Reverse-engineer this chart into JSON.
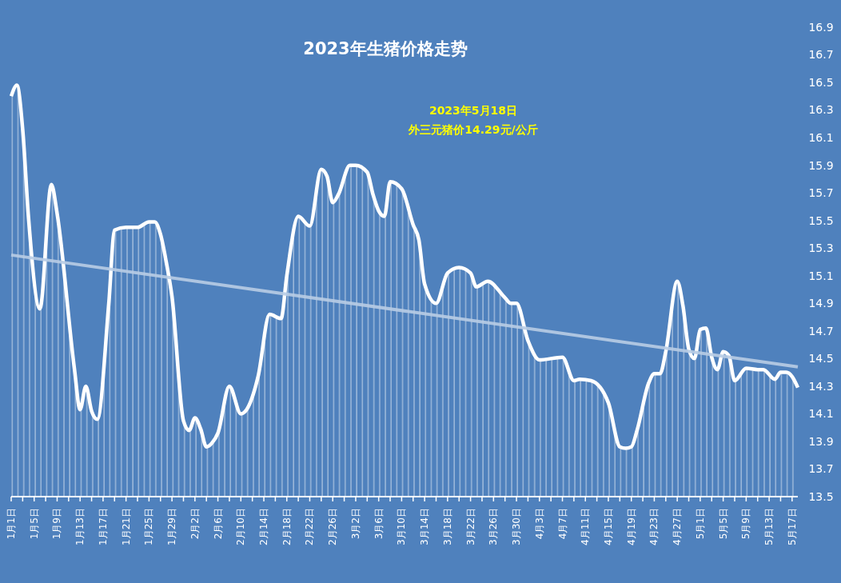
{
  "chart_data": {
    "type": "area",
    "title": "2023年生猪价格走势",
    "annotations": [
      "2023年5月18日",
      "外三元猪价14.29元/公斤"
    ],
    "x": [
      "2023-01-01",
      "2023-01-02",
      "2023-01-03",
      "2023-01-04",
      "2023-01-06",
      "2023-01-08",
      "2023-01-09",
      "2023-01-12",
      "2023-01-13",
      "2023-01-14",
      "2023-01-15",
      "2023-01-16",
      "2023-01-18",
      "2023-01-19",
      "2023-01-21",
      "2023-01-23",
      "2023-01-25",
      "2023-01-26",
      "2023-01-27",
      "2023-01-28",
      "2023-01-29",
      "2023-01-31",
      "2023-02-01",
      "2023-02-02",
      "2023-02-03",
      "2023-02-04",
      "2023-02-05",
      "2023-02-06",
      "2023-02-08",
      "2023-02-10",
      "2023-02-11",
      "2023-02-13",
      "2023-02-15",
      "2023-02-17",
      "2023-02-18",
      "2023-02-20",
      "2023-02-22",
      "2023-02-24",
      "2023-02-25",
      "2023-02-26",
      "2023-02-27",
      "2023-03-01",
      "2023-03-02",
      "2023-03-04",
      "2023-03-05",
      "2023-03-06",
      "2023-03-07",
      "2023-03-08",
      "2023-03-10",
      "2023-03-12",
      "2023-03-13",
      "2023-03-14",
      "2023-03-16",
      "2023-03-18",
      "2023-03-20",
      "2023-03-22",
      "2023-03-23",
      "2023-03-25",
      "2023-03-28",
      "2023-03-29",
      "2023-03-30",
      "2023-04-01",
      "2023-04-03",
      "2023-04-07",
      "2023-04-09",
      "2023-04-10",
      "2023-04-12",
      "2023-04-15",
      "2023-04-17",
      "2023-04-18",
      "2023-04-19",
      "2023-04-20",
      "2023-04-22",
      "2023-04-23",
      "2023-04-24",
      "2023-04-25",
      "2023-04-27",
      "2023-04-28",
      "2023-04-29",
      "2023-04-30",
      "2023-05-01",
      "2023-05-02",
      "2023-05-03",
      "2023-05-04",
      "2023-05-05",
      "2023-05-06",
      "2023-05-07",
      "2023-05-09",
      "2023-05-11",
      "2023-05-12",
      "2023-05-14",
      "2023-05-15",
      "2023-05-16",
      "2023-05-17",
      "2023-05-18"
    ],
    "series": [
      {
        "color": "#ffffff",
        "values": [
          16.4,
          16.48,
          16.16,
          15.53,
          14.86,
          15.76,
          15.55,
          14.43,
          14.13,
          14.3,
          14.12,
          14.06,
          14.9,
          15.43,
          15.45,
          15.45,
          15.49,
          15.49,
          15.4,
          15.2,
          14.95,
          14.05,
          13.98,
          14.07,
          13.99,
          13.86,
          13.89,
          13.96,
          14.3,
          14.1,
          14.13,
          14.37,
          14.82,
          14.79,
          15.1,
          15.53,
          15.46,
          15.87,
          15.82,
          15.63,
          15.69,
          15.9,
          15.9,
          15.85,
          15.69,
          15.57,
          15.53,
          15.78,
          15.73,
          15.47,
          15.36,
          15.04,
          14.9,
          15.12,
          15.16,
          15.12,
          15.02,
          15.06,
          14.94,
          14.9,
          14.9,
          14.63,
          14.49,
          14.51,
          14.34,
          14.35,
          14.34,
          14.18,
          13.86,
          13.85,
          13.86,
          13.98,
          14.32,
          14.39,
          14.39,
          14.55,
          15.06,
          14.88,
          14.57,
          14.5,
          14.71,
          14.72,
          14.51,
          14.42,
          14.55,
          14.52,
          14.34,
          14.43,
          14.42,
          14.42,
          14.35,
          14.4,
          14.4,
          14.37,
          14.29
        ]
      },
      {
        "type": "line",
        "color": "#b8cce4",
        "x": [
          "2023-01-01",
          "2023-05-18"
        ],
        "values": [
          15.25,
          14.44
        ]
      }
    ],
    "xlim": [
      "2023-01-01",
      "2023-05-18"
    ],
    "xticks": [
      {
        "value": "2023-01-01",
        "label": "1月1日"
      },
      {
        "value": "2023-01-03",
        "label": null
      },
      {
        "value": "2023-01-05",
        "label": "1月5日"
      },
      {
        "value": "2023-01-07",
        "label": null
      },
      {
        "value": "2023-01-09",
        "label": "1月9日"
      },
      {
        "value": "2023-01-11",
        "label": null
      },
      {
        "value": "2023-01-13",
        "label": "1月13日"
      },
      {
        "value": "2023-01-15",
        "label": null
      },
      {
        "value": "2023-01-17",
        "label": "1月17日"
      },
      {
        "value": "2023-01-19",
        "label": null
      },
      {
        "value": "2023-01-21",
        "label": "1月21日"
      },
      {
        "value": "2023-01-23",
        "label": null
      },
      {
        "value": "2023-01-25",
        "label": "1月25日"
      },
      {
        "value": "2023-01-27",
        "label": null
      },
      {
        "value": "2023-01-29",
        "label": "1月29日"
      },
      {
        "value": "2023-01-31",
        "label": null
      },
      {
        "value": "2023-02-02",
        "label": "2月2日"
      },
      {
        "value": "2023-02-04",
        "label": null
      },
      {
        "value": "2023-02-06",
        "label": "2月6日"
      },
      {
        "value": "2023-02-08",
        "label": null
      },
      {
        "value": "2023-02-10",
        "label": "2月10日"
      },
      {
        "value": "2023-02-12",
        "label": null
      },
      {
        "value": "2023-02-14",
        "label": "2月14日"
      },
      {
        "value": "2023-02-16",
        "label": null
      },
      {
        "value": "2023-02-18",
        "label": "2月18日"
      },
      {
        "value": "2023-02-20",
        "label": null
      },
      {
        "value": "2023-02-22",
        "label": "2月22日"
      },
      {
        "value": "2023-02-24",
        "label": null
      },
      {
        "value": "2023-02-26",
        "label": "2月26日"
      },
      {
        "value": "2023-02-28",
        "label": null
      },
      {
        "value": "2023-03-02",
        "label": "3月2日"
      },
      {
        "value": "2023-03-04",
        "label": null
      },
      {
        "value": "2023-03-06",
        "label": "3月6日"
      },
      {
        "value": "2023-03-08",
        "label": null
      },
      {
        "value": "2023-03-10",
        "label": "3月10日"
      },
      {
        "value": "2023-03-12",
        "label": null
      },
      {
        "value": "2023-03-14",
        "label": "3月14日"
      },
      {
        "value": "2023-03-16",
        "label": null
      },
      {
        "value": "2023-03-18",
        "label": "3月18日"
      },
      {
        "value": "2023-03-20",
        "label": null
      },
      {
        "value": "2023-03-22",
        "label": "3月22日"
      },
      {
        "value": "2023-03-24",
        "label": null
      },
      {
        "value": "2023-03-26",
        "label": "3月26日"
      },
      {
        "value": "2023-03-28",
        "label": null
      },
      {
        "value": "2023-03-30",
        "label": "3月30日"
      },
      {
        "value": "2023-04-01",
        "label": null
      },
      {
        "value": "2023-04-03",
        "label": "4月3日"
      },
      {
        "value": "2023-04-05",
        "label": null
      },
      {
        "value": "2023-04-07",
        "label": "4月7日"
      },
      {
        "value": "2023-04-09",
        "label": null
      },
      {
        "value": "2023-04-11",
        "label": "4月11日"
      },
      {
        "value": "2023-04-13",
        "label": null
      },
      {
        "value": "2023-04-15",
        "label": "4月15日"
      },
      {
        "value": "2023-04-17",
        "label": null
      },
      {
        "value": "2023-04-19",
        "label": "4月19日"
      },
      {
        "value": "2023-04-21",
        "label": null
      },
      {
        "value": "2023-04-23",
        "label": "4月23日"
      },
      {
        "value": "2023-04-25",
        "label": null
      },
      {
        "value": "2023-04-27",
        "label": "4月27日"
      },
      {
        "value": "2023-04-29",
        "label": null
      },
      {
        "value": "2023-05-01",
        "label": "5月1日"
      },
      {
        "value": "2023-05-03",
        "label": null
      },
      {
        "value": "2023-05-05",
        "label": "5月5日"
      },
      {
        "value": "2023-05-07",
        "label": null
      },
      {
        "value": "2023-05-09",
        "label": "5月9日"
      },
      {
        "value": "2023-05-11",
        "label": null
      },
      {
        "value": "2023-05-13",
        "label": "5月13日"
      },
      {
        "value": "2023-05-15",
        "label": null
      },
      {
        "value": "2023-05-17",
        "label": "5月17日"
      }
    ],
    "ylim": [
      13.5,
      16.9
    ],
    "yticks": [
      13.5,
      13.7,
      13.9,
      14.1,
      14.3,
      14.5,
      14.7,
      14.9,
      15.1,
      15.3,
      15.5,
      15.7,
      15.9,
      16.1,
      16.3,
      16.5,
      16.7,
      16.9
    ],
    "grid": false
  }
}
